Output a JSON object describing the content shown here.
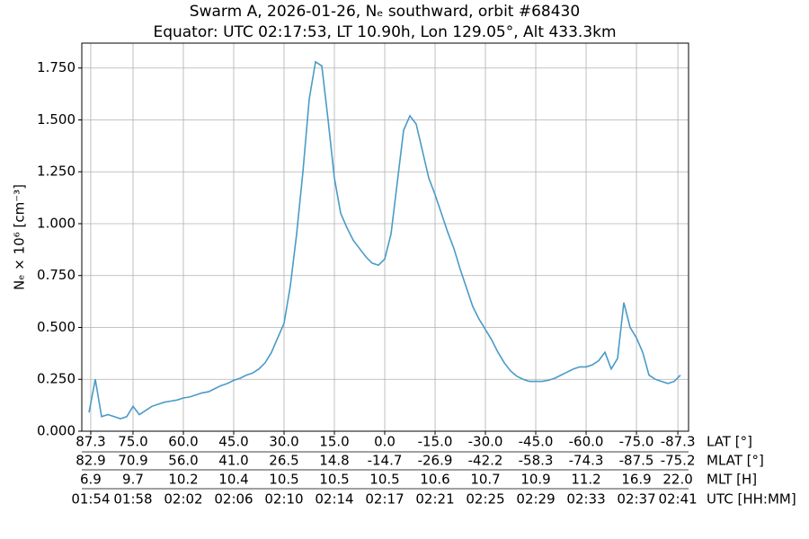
{
  "chart_data": {
    "type": "line",
    "title": "Swarm A, 2026-01-26, Nₑ southward, orbit #68430",
    "subtitle": "Equator: UTC 02:17:53, LT 10.90h, Lon 129.05°, Alt 433.3km",
    "ylabel": "Nₑ × 10⁶ [cm⁻³]",
    "xlabel": "UTC [HH:MM]",
    "grid": true,
    "xlim": [
      113.93,
      162.14
    ],
    "ylim": [
      0,
      1.87
    ],
    "yticks": [
      {
        "value": 0,
        "label": "0.000"
      },
      {
        "value": 0.25,
        "label": "0.250"
      },
      {
        "value": 0.5,
        "label": "0.500"
      },
      {
        "value": 0.75,
        "label": "0.750"
      },
      {
        "value": 1,
        "label": "1.000"
      },
      {
        "value": 1.25,
        "label": "1.250"
      },
      {
        "value": 1.5,
        "label": "1.500"
      },
      {
        "value": 1.75,
        "label": "1.750"
      }
    ],
    "xticks": [
      {
        "value": 114.64,
        "label": "01:54"
      },
      {
        "value": 118,
        "label": "01:58"
      },
      {
        "value": 122,
        "label": "02:02"
      },
      {
        "value": 126,
        "label": "02:06"
      },
      {
        "value": 130,
        "label": "02:10"
      },
      {
        "value": 134,
        "label": "02:14"
      },
      {
        "value": 138,
        "label": "02:17"
      },
      {
        "value": 142,
        "label": "02:21"
      },
      {
        "value": 146,
        "label": "02:25"
      },
      {
        "value": 150,
        "label": "02:29"
      },
      {
        "value": 154,
        "label": "02:33"
      },
      {
        "value": 158,
        "label": "02:37"
      },
      {
        "value": 161.29,
        "label": "02:41"
      }
    ],
    "tick_rows": [
      {
        "name": "LAT [°]",
        "labels": [
          "87.3",
          "75.0",
          "60.0",
          "45.0",
          "30.0",
          "15.0",
          "0.0",
          "-15.0",
          "-30.0",
          "-45.0",
          "-60.0",
          "-75.0",
          "-87.3"
        ]
      },
      {
        "name": "MLAT [°]",
        "labels": [
          "82.9",
          "70.9",
          "56.0",
          "41.0",
          "26.5",
          "14.8",
          "-14.7",
          "-26.9",
          "-42.2",
          "-58.3",
          "-74.3",
          "-87.5",
          "-75.2"
        ]
      },
      {
        "name": "MLT [H]",
        "labels": [
          "6.9",
          "9.7",
          "10.2",
          "10.4",
          "10.5",
          "10.5",
          "10.5",
          "10.6",
          "10.7",
          "10.9",
          "11.2",
          "16.9",
          "22.0"
        ]
      }
    ],
    "x": [
      114.5,
      115,
      115.5,
      116,
      116.5,
      117,
      117.5,
      118,
      118.5,
      119,
      119.5,
      120,
      120.5,
      121,
      121.5,
      122,
      122.5,
      123,
      123.5,
      124,
      124.5,
      125,
      125.5,
      126,
      126.5,
      127,
      127.5,
      128,
      128.5,
      129,
      129.5,
      130,
      130.5,
      131,
      131.5,
      132,
      132.5,
      133,
      133.5,
      134,
      134.5,
      135,
      135.5,
      136,
      136.5,
      137,
      137.5,
      138,
      138.5,
      139,
      139.5,
      140,
      140.5,
      141,
      141.5,
      142,
      142.5,
      143,
      143.5,
      144,
      144.5,
      145,
      145.5,
      146,
      146.5,
      147,
      147.5,
      148,
      148.5,
      149,
      149.5,
      150,
      150.5,
      151,
      151.5,
      152,
      152.5,
      153,
      153.5,
      154,
      154.5,
      155,
      155.5,
      156,
      156.5,
      157,
      157.5,
      158,
      158.5,
      159,
      159.5,
      160,
      160.5,
      161,
      161.5
    ],
    "series": [
      {
        "name": "Ne",
        "color": "#4a9bc7",
        "values": [
          0.09,
          0.25,
          0.07,
          0.08,
          0.07,
          0.06,
          0.07,
          0.12,
          0.08,
          0.1,
          0.12,
          0.13,
          0.14,
          0.145,
          0.15,
          0.16,
          0.165,
          0.175,
          0.185,
          0.19,
          0.205,
          0.22,
          0.23,
          0.245,
          0.255,
          0.27,
          0.28,
          0.3,
          0.33,
          0.38,
          0.45,
          0.52,
          0.7,
          0.95,
          1.25,
          1.6,
          1.78,
          1.76,
          1.5,
          1.22,
          1.05,
          0.98,
          0.92,
          0.88,
          0.84,
          0.81,
          0.8,
          0.83,
          0.95,
          1.2,
          1.45,
          1.52,
          1.48,
          1.35,
          1.22,
          1.14,
          1.05,
          0.96,
          0.88,
          0.78,
          0.69,
          0.6,
          0.54,
          0.49,
          0.44,
          0.38,
          0.33,
          0.29,
          0.265,
          0.25,
          0.24,
          0.24,
          0.24,
          0.245,
          0.255,
          0.27,
          0.285,
          0.3,
          0.31,
          0.31,
          0.32,
          0.34,
          0.38,
          0.3,
          0.35,
          0.62,
          0.5,
          0.45,
          0.38,
          0.27,
          0.25,
          0.24,
          0.23,
          0.24,
          0.27
        ]
      }
    ]
  }
}
